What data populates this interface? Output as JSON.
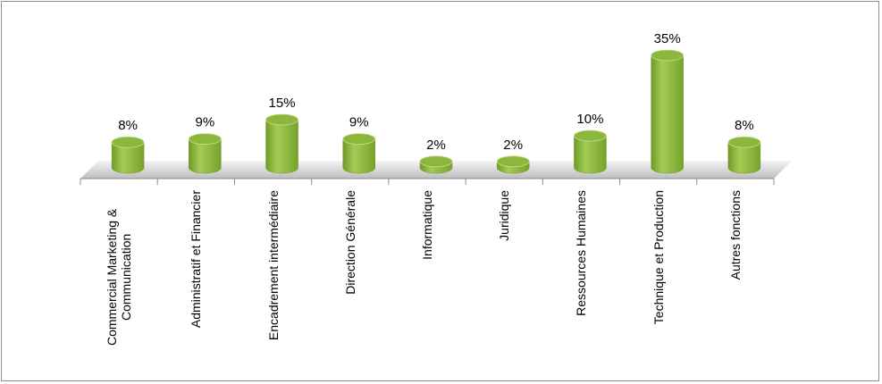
{
  "chart_data": {
    "type": "bar",
    "categories": [
      "Commercial Marketing & Communication",
      "Administratif et Financier",
      "Encadrement intermédiaire",
      "Direction Générale",
      "Informatique",
      "Juridique",
      "Ressources Humaines",
      "Technique et Production",
      "Autres fonctions"
    ],
    "values": [
      8,
      9,
      15,
      9,
      2,
      2,
      10,
      35,
      8
    ],
    "value_labels": [
      "8%",
      "9%",
      "15%",
      "9%",
      "2%",
      "2%",
      "10%",
      "35%",
      "8%"
    ],
    "color": "#8db63c"
  }
}
